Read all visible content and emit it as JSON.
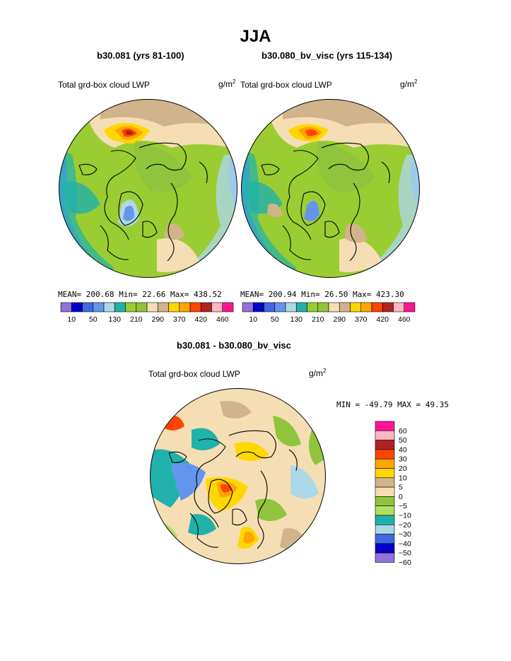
{
  "chart_data": [
    {
      "type": "heatmap",
      "projection": "north-polar-stereographic",
      "title": "b30.081 (yrs 81-100)",
      "variable_label": "Total grd-box cloud LWP",
      "units": "g/m",
      "units_exp": "2",
      "stats_text": "MEAN= 200.68   Min=   22.66   Max= 438.52",
      "colorbar_labels": [
        "10",
        "50",
        "130",
        "210",
        "290",
        "370",
        "420",
        "460"
      ],
      "colorbar_colors": [
        "#9370db",
        "#0000c8",
        "#4169e1",
        "#6495ed",
        "#add8e6",
        "#20b2aa",
        "#9acd32",
        "#90c43c",
        "#f5deb3",
        "#d2b48c",
        "#ffd700",
        "#ffa500",
        "#ff4500",
        "#b22222",
        "#ffb6c1",
        "#ff1493"
      ]
    },
    {
      "type": "heatmap",
      "projection": "north-polar-stereographic",
      "title": "b30.080_bv_visc (yrs 115-134)",
      "variable_label": "Total grd-box cloud LWP",
      "units": "g/m",
      "units_exp": "2",
      "stats_text": "MEAN= 200.94   Min=   26.50   Max= 423.30",
      "colorbar_labels": [
        "10",
        "50",
        "130",
        "210",
        "290",
        "370",
        "420",
        "460"
      ],
      "colorbar_colors": [
        "#9370db",
        "#0000c8",
        "#4169e1",
        "#6495ed",
        "#add8e6",
        "#20b2aa",
        "#9acd32",
        "#90c43c",
        "#f5deb3",
        "#d2b48c",
        "#ffd700",
        "#ffa500",
        "#ff4500",
        "#b22222",
        "#ffb6c1",
        "#ff1493"
      ]
    },
    {
      "type": "heatmap",
      "projection": "north-polar-stereographic",
      "title": "b30.081 - b30.080_bv_visc",
      "variable_label": "Total grd-box cloud LWP",
      "units": "g/m",
      "units_exp": "2",
      "stats_text": "MIN = -49.79  MAX =  49.35",
      "colorbar_labels": [
        "60",
        "50",
        "40",
        "30",
        "20",
        "10",
        "5",
        "0",
        "-5",
        "-10",
        "-20",
        "-30",
        "-40",
        "-50",
        "-60"
      ],
      "colorbar_colors": [
        "#ff1493",
        "#ffb6c1",
        "#b22222",
        "#ff4500",
        "#ffa500",
        "#ffd700",
        "#d2b48c",
        "#f5deb3",
        "#90c43c",
        "#b0e060",
        "#20b2aa",
        "#add8e6",
        "#4169e1",
        "#0000c8",
        "#9370db"
      ]
    }
  ],
  "page": {
    "title": "JJA"
  }
}
